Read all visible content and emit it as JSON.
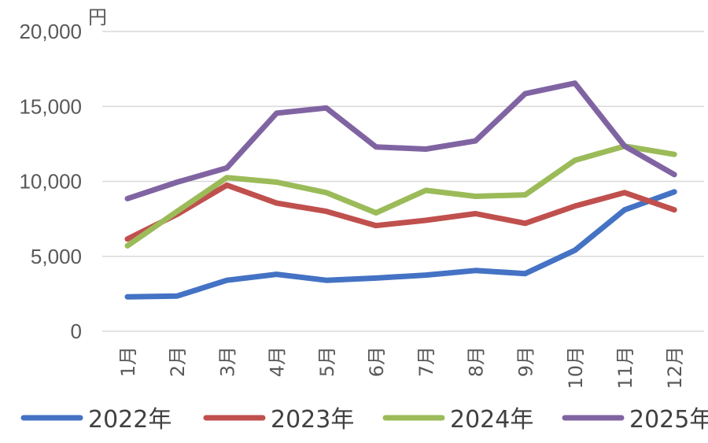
{
  "chart_data": {
    "type": "line",
    "title": "",
    "xlabel": "",
    "ylabel": "",
    "y_unit": "円",
    "ylim": [
      0,
      20000
    ],
    "yticks": [
      "0",
      "5,000",
      "10,000",
      "15,000",
      "20,000"
    ],
    "grid": true,
    "legend_position": "bottom",
    "categories": [
      "1月",
      "2月",
      "3月",
      "4月",
      "5月",
      "6月",
      "7月",
      "8月",
      "9月",
      "10月",
      "11月",
      "12月"
    ],
    "series": [
      {
        "name": "2022年",
        "color": "#4472c4",
        "values": [
          2300,
          2350,
          3400,
          3800,
          3400,
          3550,
          3750,
          4050,
          3850,
          5400,
          8100,
          9300
        ]
      },
      {
        "name": "2023年",
        "color": "#c0504d",
        "values": [
          6150,
          7800,
          9750,
          8550,
          8000,
          7050,
          7400,
          7850,
          7200,
          8350,
          9250,
          8100
        ]
      },
      {
        "name": "2024年",
        "color": "#9bbb59",
        "values": [
          5700,
          8000,
          10250,
          9950,
          9250,
          7900,
          9400,
          9000,
          9100,
          11400,
          12350,
          11800
        ]
      },
      {
        "name": "2025年",
        "color": "#8064a2",
        "values": [
          8850,
          9950,
          10900,
          14550,
          14900,
          12300,
          12150,
          12700,
          15850,
          16550,
          12350,
          10450
        ]
      }
    ]
  }
}
